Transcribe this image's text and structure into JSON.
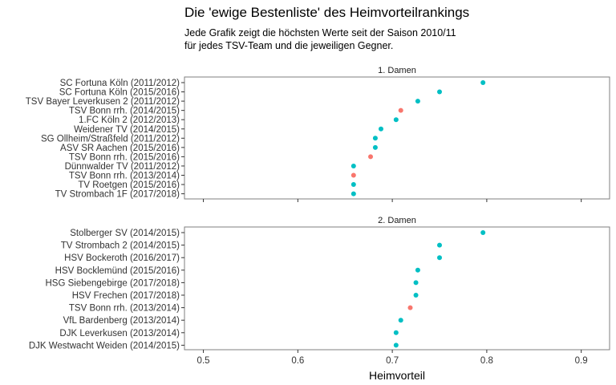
{
  "header": {
    "title": "Die 'ewige Bestenliste' des Heimvorteilrankings",
    "subtitle_line1": "Jede Grafik zeigt die höchsten Werte seit der Saison 2010/11",
    "subtitle_line2": "für jedes TSV-Team und die jeweiligen Gegner."
  },
  "colors": {
    "tsv": "#F8766D",
    "other": "#00BFC4",
    "panel_border": "#7f7f7f"
  },
  "chart_data": {
    "type": "scatter",
    "xlabel": "Heimvorteil",
    "xlim": [
      0.48,
      0.93
    ],
    "xticks": [
      0.5,
      0.6,
      0.7,
      0.8,
      0.9
    ],
    "xtick_labels": [
      "0.5",
      "0.6",
      "0.7",
      "0.8",
      "0.9"
    ],
    "grid": false,
    "legend": "none",
    "panels": [
      {
        "title": "1. Damen",
        "points": [
          {
            "label": "SC Fortuna Köln (2011/2012)",
            "x": 0.796,
            "group": "other"
          },
          {
            "label": "SC Fortuna Köln (2015/2016)",
            "x": 0.75,
            "group": "other"
          },
          {
            "label": "TSV Bayer Leverkusen 2 (2011/2012)",
            "x": 0.727,
            "group": "other"
          },
          {
            "label": "TSV Bonn rrh. (2014/2015)",
            "x": 0.709,
            "group": "tsv"
          },
          {
            "label": "1.FC Köln 2 (2012/2013)",
            "x": 0.704,
            "group": "other"
          },
          {
            "label": "Weidener TV (2014/2015)",
            "x": 0.688,
            "group": "other"
          },
          {
            "label": "SG Ollheim/Straßfeld (2011/2012)",
            "x": 0.682,
            "group": "other"
          },
          {
            "label": "ASV SR Aachen (2015/2016)",
            "x": 0.682,
            "group": "other"
          },
          {
            "label": "TSV Bonn rrh. (2015/2016)",
            "x": 0.677,
            "group": "tsv"
          },
          {
            "label": "Dünnwalder TV (2011/2012)",
            "x": 0.659,
            "group": "other"
          },
          {
            "label": "TSV Bonn rrh. (2013/2014)",
            "x": 0.659,
            "group": "tsv"
          },
          {
            "label": "TV Roetgen (2015/2016)",
            "x": 0.659,
            "group": "other"
          },
          {
            "label": "TV Strombach 1F (2017/2018)",
            "x": 0.659,
            "group": "other"
          }
        ]
      },
      {
        "title": "2. Damen",
        "points": [
          {
            "label": "Stolberger SV (2014/2015)",
            "x": 0.796,
            "group": "other"
          },
          {
            "label": "TV Strombach 2 (2014/2015)",
            "x": 0.75,
            "group": "other"
          },
          {
            "label": "HSV Bockeroth (2016/2017)",
            "x": 0.75,
            "group": "other"
          },
          {
            "label": "HSV Bocklemünd (2015/2016)",
            "x": 0.727,
            "group": "other"
          },
          {
            "label": "HSG Siebengebirge (2017/2018)",
            "x": 0.725,
            "group": "other"
          },
          {
            "label": "HSV Frechen (2017/2018)",
            "x": 0.725,
            "group": "other"
          },
          {
            "label": "TSV Bonn rrh. (2013/2014)",
            "x": 0.719,
            "group": "tsv"
          },
          {
            "label": "VfL Bardenberg (2013/2014)",
            "x": 0.709,
            "group": "other"
          },
          {
            "label": "DJK Leverkusen (2013/2014)",
            "x": 0.704,
            "group": "other"
          },
          {
            "label": "DJK Westwacht Weiden (2014/2015)",
            "x": 0.704,
            "group": "other"
          }
        ]
      }
    ]
  }
}
